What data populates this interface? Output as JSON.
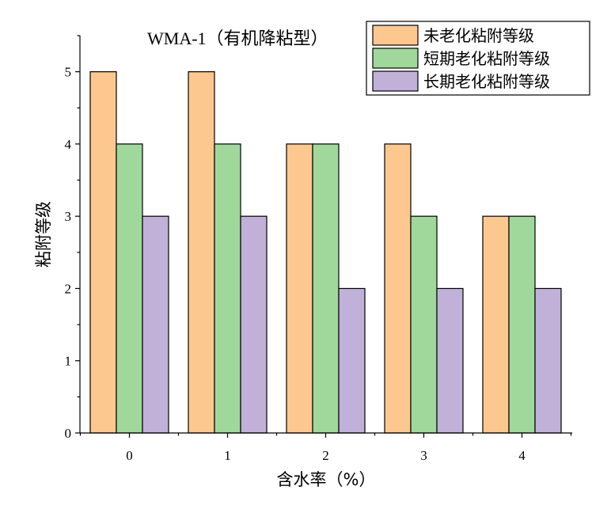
{
  "chart_data": {
    "type": "bar",
    "title": "WMA-1（有机降粘型）",
    "xlabel": "含水率（%）",
    "ylabel": "粘附等级",
    "categories": [
      "0",
      "1",
      "2",
      "3",
      "4"
    ],
    "ylim": [
      0,
      5.5
    ],
    "yticks": [
      "0",
      "1",
      "2",
      "3",
      "4",
      "5"
    ],
    "grid": false,
    "legend_position": "top-right",
    "series": [
      {
        "name": "未老化粘附等级",
        "values": [
          5,
          5,
          4,
          4,
          3
        ],
        "color": "#FDC890"
      },
      {
        "name": "短期老化粘附等级",
        "values": [
          4,
          4,
          4,
          3,
          3
        ],
        "color": "#A0D89C"
      },
      {
        "name": "长期老化粘附等级",
        "values": [
          3,
          3,
          2,
          2,
          2
        ],
        "color": "#C1B1D9"
      }
    ]
  }
}
